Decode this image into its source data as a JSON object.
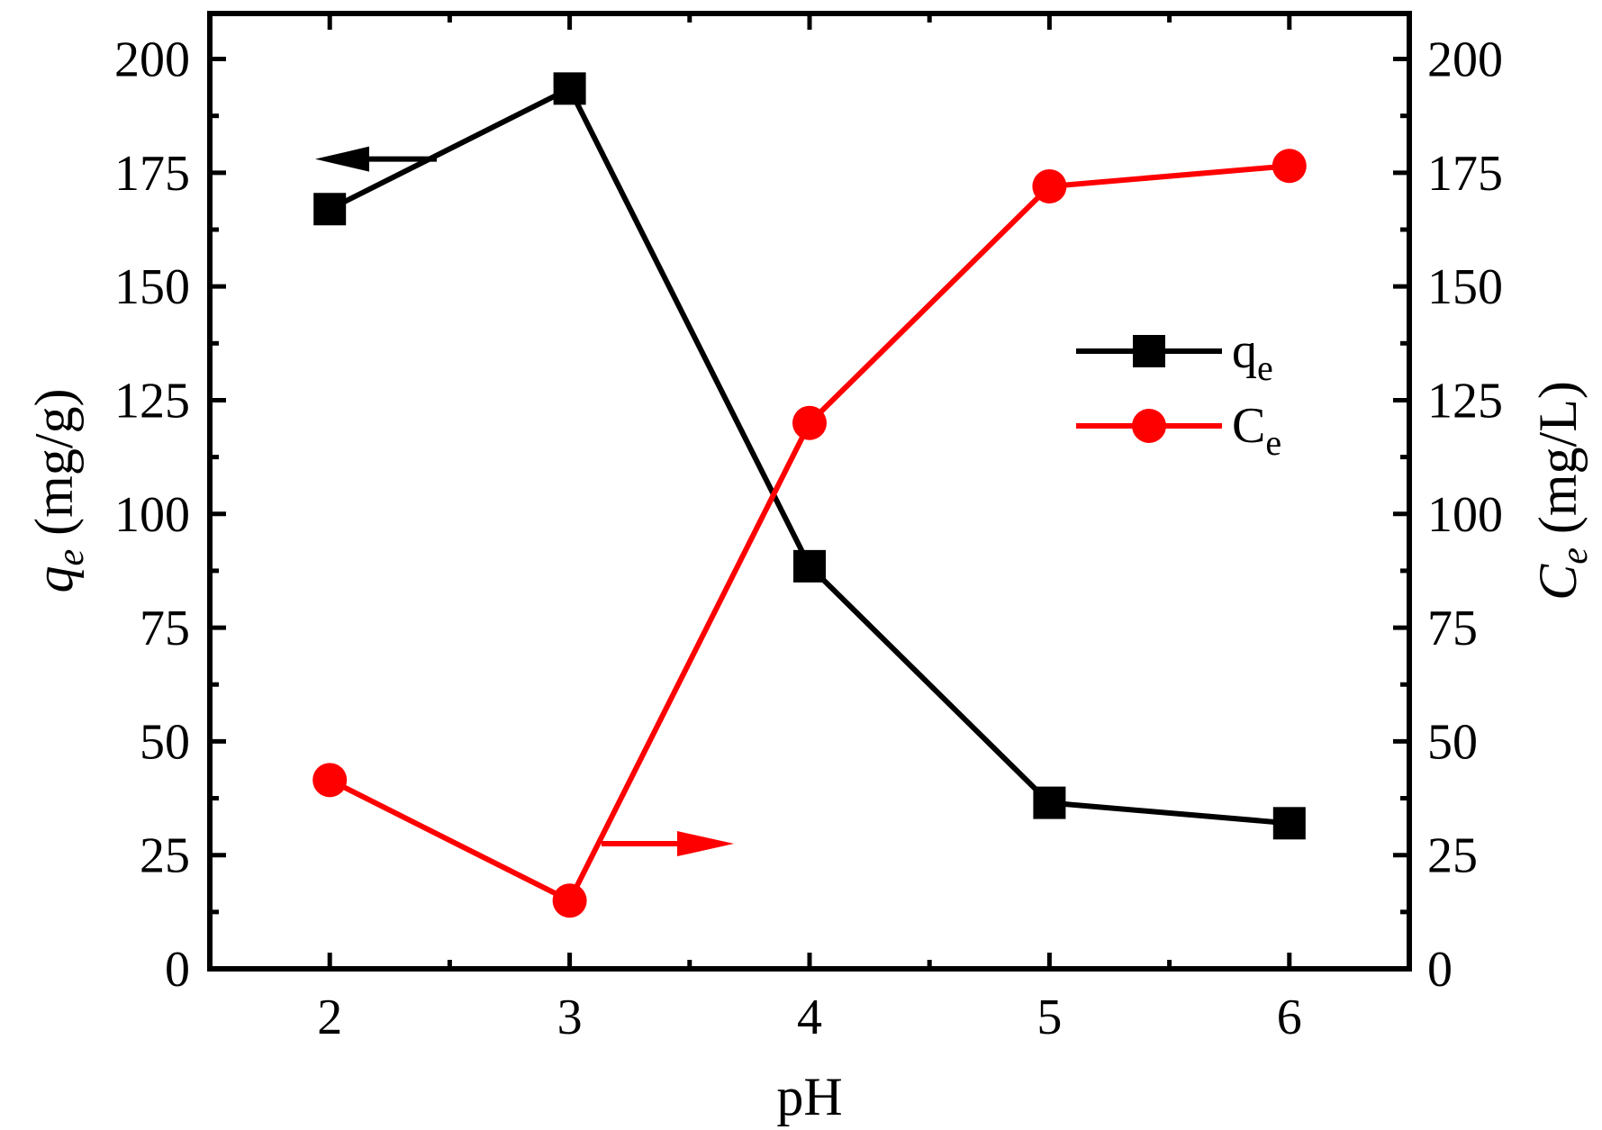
{
  "chart_data": {
    "type": "line",
    "x": [
      2,
      3,
      4,
      5,
      6
    ],
    "xlabel": "pH",
    "xlim": [
      1.5,
      6.5
    ],
    "xticks": [
      2,
      3,
      4,
      5,
      6
    ],
    "y_left": {
      "label_italic": "q",
      "label_sub": "e",
      "label_unit": " (mg/g)",
      "ylim": [
        0,
        210
      ],
      "ticks": [
        0,
        25,
        50,
        75,
        100,
        125,
        150,
        175,
        200
      ]
    },
    "y_right": {
      "label_italic": "C",
      "label_sub": "e",
      "label_unit": " (mg/L)",
      "ylim": [
        0,
        210
      ],
      "ticks": [
        0,
        25,
        50,
        75,
        100,
        125,
        150,
        175,
        200
      ]
    },
    "series": [
      {
        "name": "q",
        "name_sub": "e",
        "axis": "left",
        "marker": "square",
        "color": "#000000",
        "values": [
          167,
          193.5,
          88.5,
          36.5,
          32
        ]
      },
      {
        "name": "C",
        "name_sub": "e",
        "axis": "right",
        "marker": "circle",
        "color": "#ff0000",
        "values": [
          41.5,
          15,
          120,
          172,
          176.5
        ]
      }
    ],
    "annotations": [
      {
        "type": "arrow",
        "direction": "left",
        "color": "#000000",
        "meaning": "q_e uses left axis"
      },
      {
        "type": "arrow",
        "direction": "right",
        "color": "#ff0000",
        "meaning": "C_e uses right axis"
      }
    ],
    "legend_position": "right-middle",
    "grid": false
  }
}
